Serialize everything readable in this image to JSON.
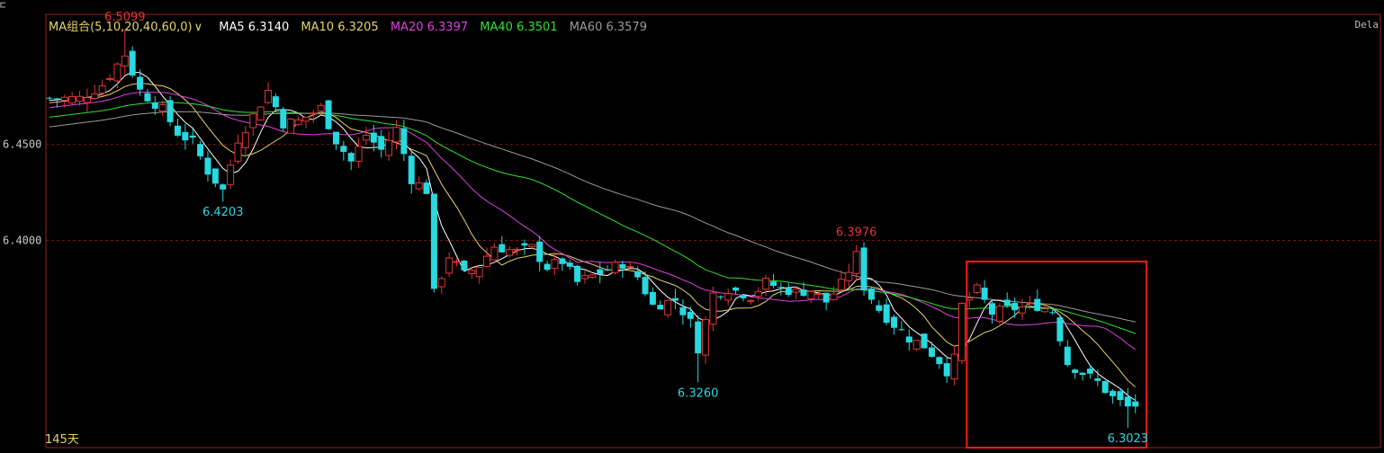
{
  "header": {
    "corner_glyph": "⊏",
    "combo_label": "MA组合(5,10,20,40,60,0)",
    "combo_arrow": "∨",
    "right_tag": "Dela"
  },
  "legend": [
    {
      "label": "MA5 6.3140",
      "color": "#ffffff"
    },
    {
      "label": "MA10 6.3205",
      "color": "#e8d36a"
    },
    {
      "label": "MA20 6.3397",
      "color": "#e040e0"
    },
    {
      "label": "MA40 6.3501",
      "color": "#30e030"
    },
    {
      "label": "MA60 6.3579",
      "color": "#9a9a9a"
    }
  ],
  "footer": {
    "day_count": "145天"
  },
  "colors": {
    "up": "#e03535",
    "down": "#27d9e0",
    "frame": "#9a1e1e",
    "grid": "#7a1515",
    "axis_text": "#c8c8c8",
    "box": "#ff1a1a"
  },
  "chart_data": {
    "type": "candlestick",
    "bars": 145,
    "ylim": [
      6.292,
      6.5178
    ],
    "yticks": [
      {
        "value": 6.45,
        "label": "6.4500"
      },
      {
        "value": 6.4,
        "label": "6.4000"
      }
    ],
    "annotations": [
      {
        "bar": 10,
        "value": 6.5099,
        "label": "6.5099",
        "kind": "high"
      },
      {
        "bar": 23,
        "value": 6.4203,
        "label": "6.4203",
        "kind": "low"
      },
      {
        "bar": 86,
        "value": 6.326,
        "label": "6.3260",
        "kind": "low"
      },
      {
        "bar": 107,
        "value": 6.3976,
        "label": "6.3976",
        "kind": "high"
      },
      {
        "bar": 143,
        "value": 6.3023,
        "label": "6.3023",
        "kind": "low"
      }
    ],
    "highlight_box": {
      "from_bar": 122,
      "to_bar": 145,
      "low": 6.292,
      "high": 6.389
    },
    "price_path": [
      [
        0,
        6.474
      ],
      [
        4,
        6.474
      ],
      [
        7,
        6.481
      ],
      [
        10,
        6.497
      ],
      [
        12,
        6.478
      ],
      [
        15,
        6.468
      ],
      [
        17,
        6.456
      ],
      [
        19,
        6.451
      ],
      [
        21,
        6.436
      ],
      [
        23,
        6.426
      ],
      [
        25,
        6.453
      ],
      [
        27,
        6.465
      ],
      [
        29,
        6.478
      ],
      [
        31,
        6.461
      ],
      [
        33,
        6.462
      ],
      [
        36,
        6.469
      ],
      [
        38,
        6.452
      ],
      [
        40,
        6.441
      ],
      [
        42,
        6.455
      ],
      [
        44,
        6.447
      ],
      [
        46,
        6.458
      ],
      [
        48,
        6.432
      ],
      [
        50,
        6.426
      ],
      [
        51,
        6.372
      ],
      [
        53,
        6.392
      ],
      [
        55,
        6.382
      ],
      [
        57,
        6.387
      ],
      [
        59,
        6.397
      ],
      [
        62,
        6.394
      ],
      [
        64,
        6.396
      ],
      [
        66,
        6.386
      ],
      [
        68,
        6.389
      ],
      [
        70,
        6.378
      ],
      [
        73,
        6.383
      ],
      [
        76,
        6.388
      ],
      [
        78,
        6.381
      ],
      [
        80,
        6.366
      ],
      [
        83,
        6.369
      ],
      [
        85,
        6.357
      ],
      [
        86,
        6.344
      ],
      [
        88,
        6.372
      ],
      [
        90,
        6.375
      ],
      [
        93,
        6.371
      ],
      [
        95,
        6.378
      ],
      [
        97,
        6.375
      ],
      [
        99,
        6.373
      ],
      [
        101,
        6.374
      ],
      [
        103,
        6.368
      ],
      [
        105,
        6.377
      ],
      [
        107,
        6.392
      ],
      [
        108,
        6.376
      ],
      [
        110,
        6.364
      ],
      [
        112,
        6.356
      ],
      [
        114,
        6.349
      ],
      [
        116,
        6.345
      ],
      [
        118,
        6.337
      ],
      [
        119,
        6.332
      ],
      [
        120,
        6.338
      ],
      [
        121,
        6.366
      ],
      [
        123,
        6.374
      ],
      [
        125,
        6.362
      ],
      [
        127,
        6.364
      ],
      [
        129,
        6.365
      ],
      [
        131,
        6.366
      ],
      [
        133,
        6.363
      ],
      [
        135,
        6.336
      ],
      [
        137,
        6.331
      ],
      [
        139,
        6.326
      ],
      [
        141,
        6.318
      ],
      [
        143,
        6.313
      ],
      [
        144,
        6.314
      ]
    ],
    "ma_series": [
      {
        "name": "MA5",
        "period": 5,
        "value": 6.314,
        "color": "#ffffff"
      },
      {
        "name": "MA10",
        "period": 10,
        "value": 6.3205,
        "color": "#e8d36a"
      },
      {
        "name": "MA20",
        "period": 20,
        "value": 6.3397,
        "color": "#e040e0"
      },
      {
        "name": "MA40",
        "period": 40,
        "value": 6.3501,
        "color": "#30e030"
      },
      {
        "name": "MA60",
        "period": 60,
        "value": 6.3579,
        "color": "#9a9a9a"
      }
    ]
  }
}
